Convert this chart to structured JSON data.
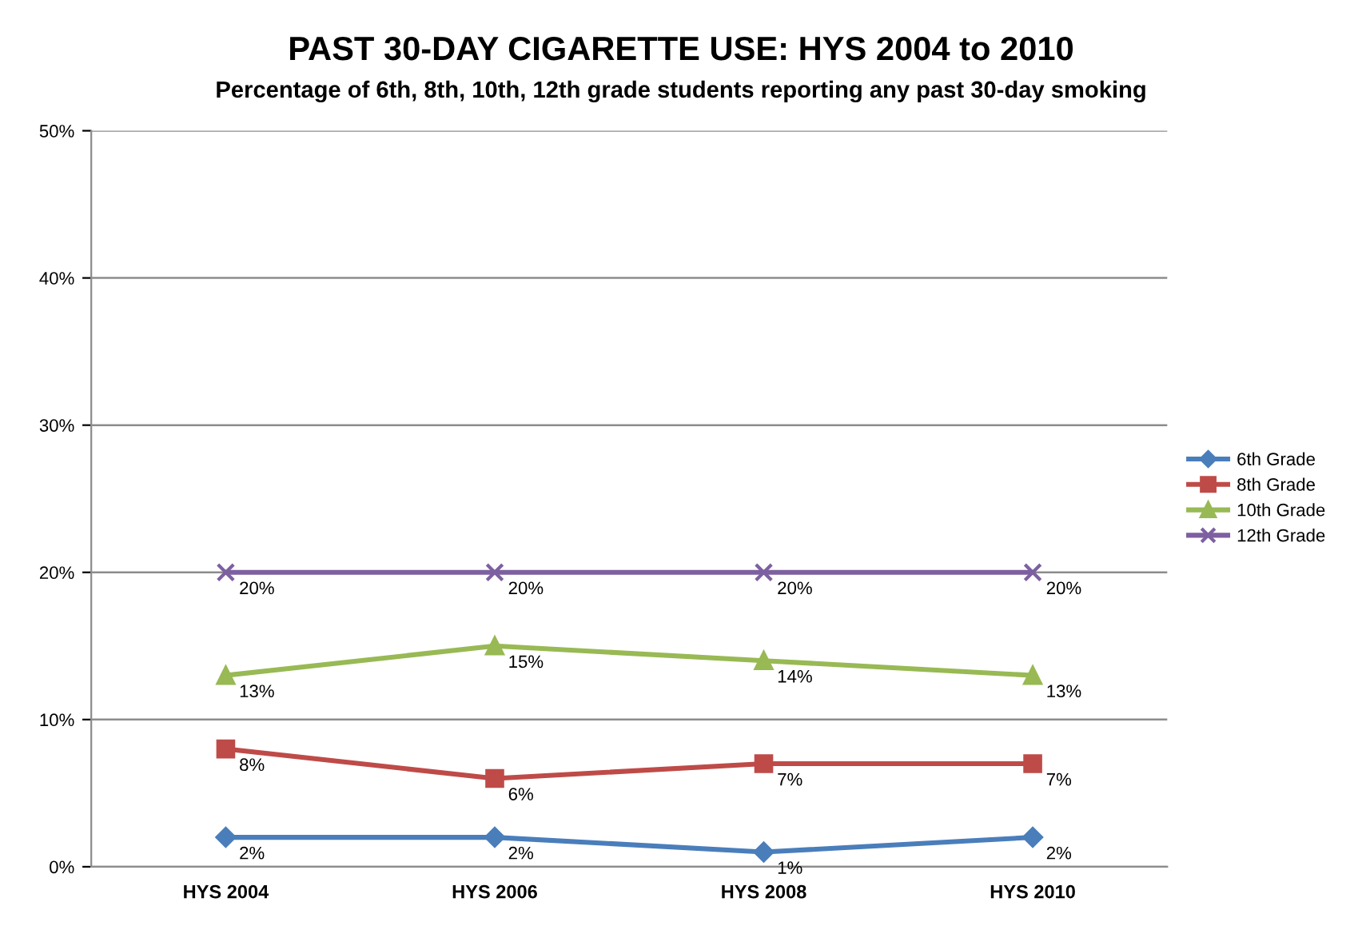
{
  "chart_data": {
    "type": "line",
    "title": "PAST 30-DAY CIGARETTE USE: HYS 2004 to 2010",
    "subtitle": "Percentage of 6th, 8th, 10th, 12th grade students reporting any past 30-day smoking",
    "categories": [
      "HYS 2004",
      "HYS 2006",
      "HYS 2008",
      "HYS 2010"
    ],
    "series": [
      {
        "name": "6th Grade",
        "color": "#4a7ebb",
        "marker": "diamond",
        "values": [
          2,
          2,
          1,
          2
        ],
        "value_labels": [
          "2%",
          "2%",
          "1%",
          "2%"
        ]
      },
      {
        "name": "8th Grade",
        "color": "#be4b48",
        "marker": "square",
        "values": [
          8,
          6,
          7,
          7
        ],
        "value_labels": [
          "8%",
          "6%",
          "7%",
          "7%"
        ]
      },
      {
        "name": "10th Grade",
        "color": "#98b954",
        "marker": "triangle",
        "values": [
          13,
          15,
          14,
          13
        ],
        "value_labels": [
          "13%",
          "15%",
          "14%",
          "13%"
        ]
      },
      {
        "name": "12th Grade",
        "color": "#7d60a0",
        "marker": "cross",
        "values": [
          20,
          20,
          20,
          20
        ],
        "value_labels": [
          "20%",
          "20%",
          "20%",
          "20%"
        ]
      }
    ],
    "ylim": [
      0,
      50
    ],
    "yticks": [
      {
        "value": 0,
        "label": "0%"
      },
      {
        "value": 10,
        "label": "10%"
      },
      {
        "value": 20,
        "label": "20%"
      },
      {
        "value": 30,
        "label": "30%"
      },
      {
        "value": 40,
        "label": "40%"
      },
      {
        "value": 50,
        "label": "50%"
      }
    ],
    "grid": "y",
    "legend": "right",
    "line_style": "solid"
  }
}
